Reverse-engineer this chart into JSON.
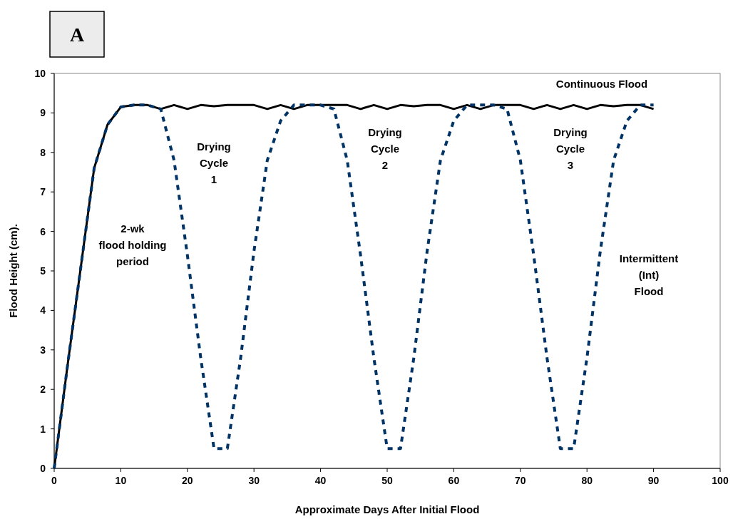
{
  "chart_data": {
    "type": "line",
    "title": "A",
    "xlabel": "Approximate Days After Initial Flood",
    "ylabel": "Flood Height (cm).",
    "x": [
      0,
      2,
      4,
      6,
      8,
      10,
      12,
      14,
      16,
      18,
      20,
      22,
      24,
      26,
      28,
      30,
      32,
      34,
      36,
      38,
      40,
      42,
      44,
      46,
      48,
      50,
      52,
      54,
      56,
      58,
      60,
      62,
      64,
      66,
      68,
      70,
      72,
      74,
      76,
      78,
      80,
      82,
      84,
      86,
      88,
      90
    ],
    "series": [
      {
        "name": "Continuous Flood",
        "color": "#000000",
        "line_style": "solid",
        "values": [
          0,
          2.6,
          5.1,
          7.6,
          8.7,
          9.15,
          9.2,
          9.2,
          9.1,
          9.2,
          9.1,
          9.2,
          9.17,
          9.2,
          9.2,
          9.2,
          9.1,
          9.2,
          9.1,
          9.2,
          9.2,
          9.2,
          9.2,
          9.1,
          9.2,
          9.1,
          9.2,
          9.17,
          9.2,
          9.2,
          9.1,
          9.2,
          9.1,
          9.2,
          9.2,
          9.2,
          9.1,
          9.2,
          9.1,
          9.2,
          9.1,
          9.2,
          9.17,
          9.2,
          9.2,
          9.1
        ]
      },
      {
        "name": "Intermittent (Int) Flood",
        "color": "#003366",
        "line_style": "dashed",
        "values": [
          0,
          2.6,
          5.1,
          7.6,
          8.7,
          9.15,
          9.2,
          9.2,
          9.1,
          7.8,
          5.4,
          2.8,
          0.5,
          0.5,
          2.8,
          5.5,
          7.8,
          8.8,
          9.2,
          9.2,
          9.2,
          9.1,
          7.8,
          5.4,
          2.8,
          0.5,
          0.5,
          2.8,
          5.5,
          7.8,
          8.8,
          9.2,
          9.2,
          9.2,
          9.1,
          7.8,
          5.4,
          2.8,
          0.5,
          0.5,
          2.8,
          5.5,
          7.8,
          8.8,
          9.2,
          9.2
        ]
      }
    ],
    "annotations": [
      "Drying\nCycle\n1",
      "Drying\nCycle\n2",
      "Drying\nCycle\n3",
      "2-wk\nflood holding\nperiod"
    ],
    "xlim": [
      0,
      100
    ],
    "xticks": [
      0,
      10,
      20,
      30,
      40,
      50,
      60,
      70,
      80,
      90,
      100
    ],
    "ylim": [
      0,
      10
    ],
    "yticks": [
      0,
      1,
      2,
      3,
      4,
      5,
      6,
      7,
      8,
      9,
      10
    ],
    "grid": false,
    "marker": "none"
  }
}
